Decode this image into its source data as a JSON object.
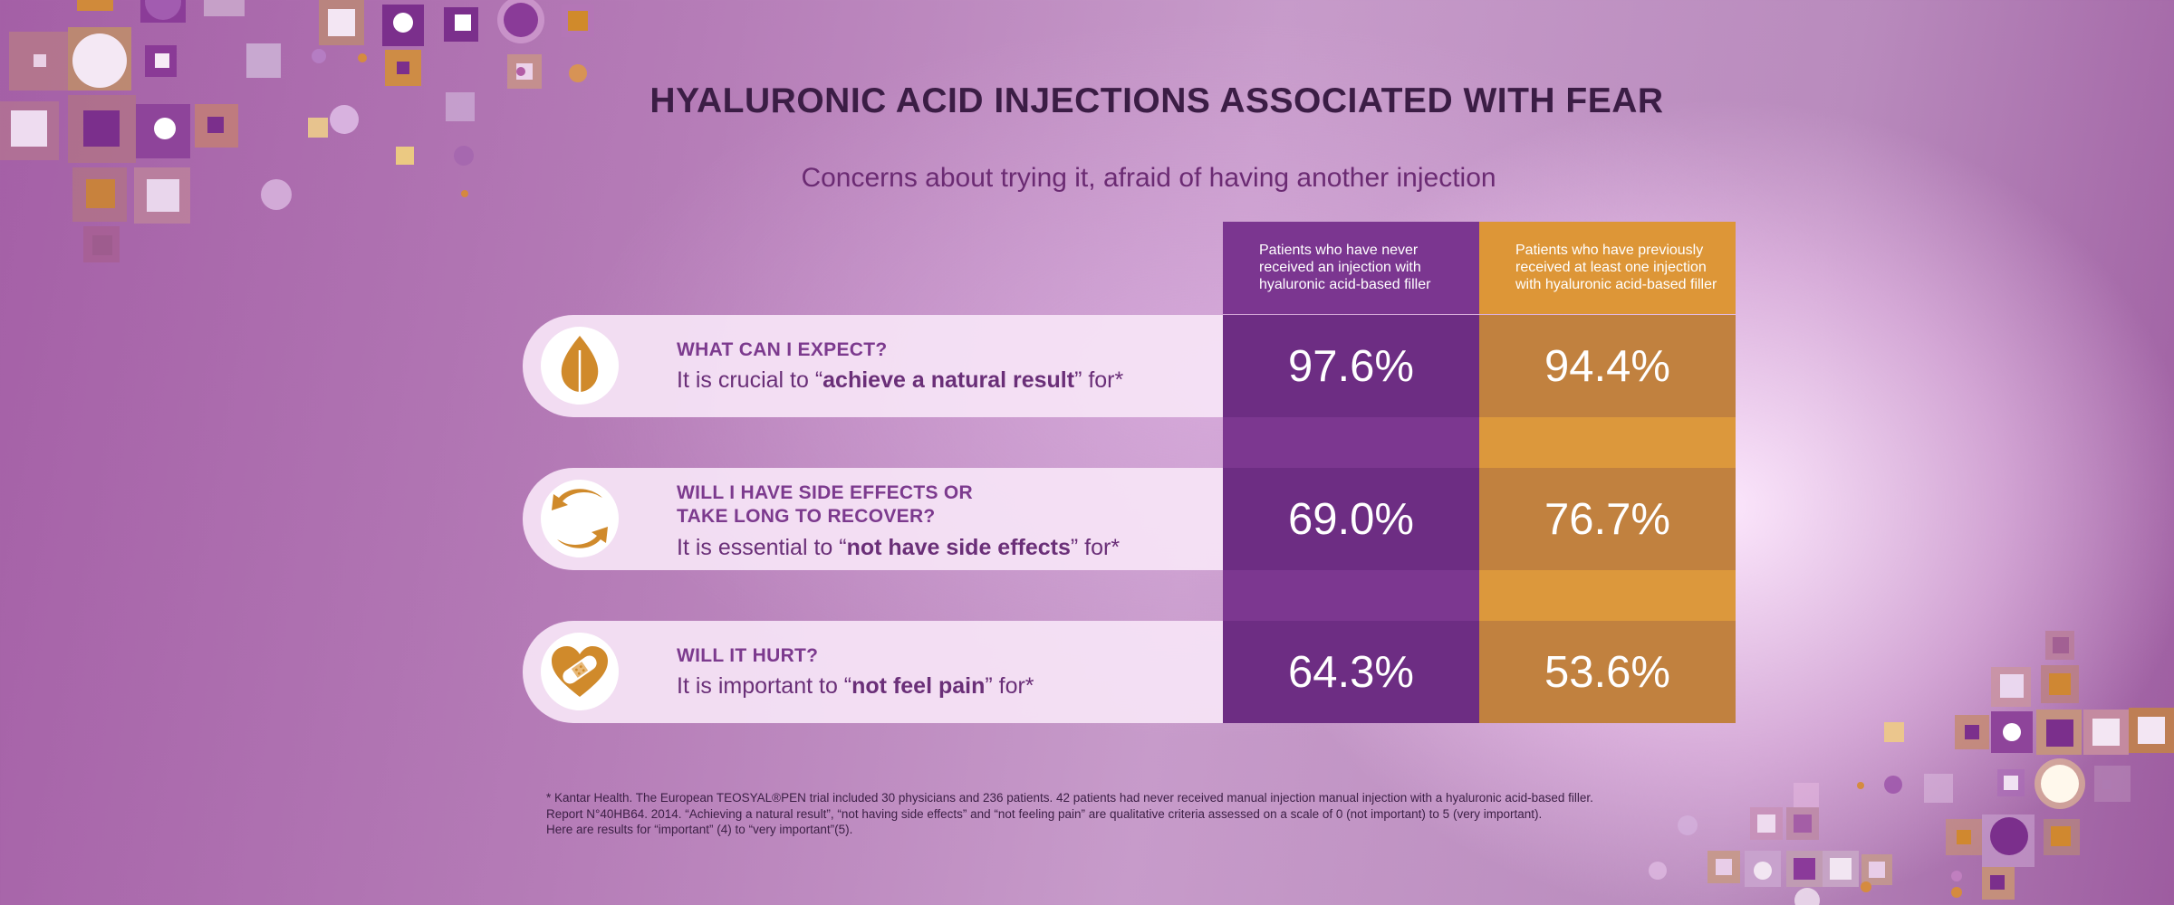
{
  "page": {
    "title": "HYALURONIC ACID INJECTIONS ASSOCIATED WITH FEAR",
    "subtitle": "Concerns about trying it, afraid of having another injection"
  },
  "colors": {
    "never_series": "#6d2d83",
    "previous_series": "#c1813f",
    "accent_orange": "#d28a2e"
  },
  "chart_data": {
    "type": "table",
    "title": "HYALURONIC ACID INJECTIONS ASSOCIATED WITH FEAR",
    "subtitle": "Concerns about trying it, afraid of having another injection",
    "series": [
      {
        "name": "Patients who have never received an injection with hyaluronic acid-based filler",
        "display": [
          "97.6%",
          "69.0%",
          "64.3%"
        ],
        "values": [
          97.6,
          69.0,
          64.3
        ]
      },
      {
        "name": "Patients who have previously received at least one injection with hyaluronic acid-based filler",
        "display": [
          "94.4%",
          "76.7%",
          "53.6%"
        ],
        "values": [
          94.4,
          76.7,
          53.6
        ]
      }
    ],
    "categories": [
      {
        "question": "WHAT CAN I EXPECT?",
        "statement_pre": "It is crucial to “",
        "statement_bold": "achieve a natural result",
        "statement_post": "” for*",
        "icon": "leaf-icon"
      },
      {
        "question": "WILL I HAVE SIDE EFFECTS OR TAKE LONG TO RECOVER?",
        "question_line1": "WILL I HAVE SIDE EFFECTS OR",
        "question_line2": "TAKE LONG TO RECOVER?",
        "statement_pre": "It is essential to “",
        "statement_bold": "not have side effects",
        "statement_post": "” for*",
        "icon": "cycle-arrows-icon"
      },
      {
        "question": "WILL IT HURT?",
        "statement_pre": "It is important to “",
        "statement_bold": "not feel pain",
        "statement_post": "” for*",
        "icon": "heart-bandage-icon"
      }
    ]
  },
  "headers": {
    "never": [
      "Patients who have never",
      "received an injection with",
      "hyaluronic acid-based filler"
    ],
    "previous": [
      "Patients who have previously",
      "received at least one injection",
      "with hyaluronic acid-based filler"
    ]
  },
  "footnote": {
    "line1": "* Kantar Health. The European TEOSYAL®PEN trial included 30 physicians and 236 patients. 42 patients had never received manual injection manual injection with a hyaluronic acid-based filler.",
    "line2": "Report N°40HB64. 2014. “Achieving a natural result”, “not having side effects” and “not feeling pain” are qualitative criteria assessed on a scale of 0 (not important) to 5 (very important).",
    "line3": "Here are results for “important” (4) to “very important”(5)."
  }
}
